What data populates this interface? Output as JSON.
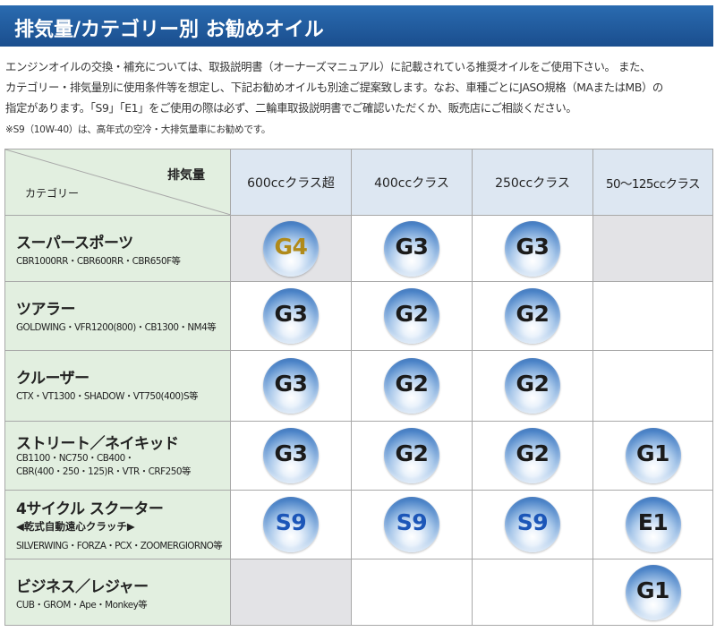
{
  "header": {
    "title": "排気量/カテゴリー別 お勧めオイル"
  },
  "intro": {
    "lines": [
      "エンジンオイルの交換・補充については、取扱説明書（オーナーズマニュアル）に記載されている推奨オイルをご使用下さい。 また、",
      "カテゴリー・排気量別に使用条件等を想定し、下記お勧めオイルも別途ご提案致します。なお、車種ごとにJASO規格（MAまたはMB）の",
      "指定があります。「S9」「E1」をご使用の際は必ず、二輪車取扱説明書でご確認いただくか、販売店にご相談ください。"
    ],
    "note": "※S9（10W-40）は、高年式の空冷・大排気量車にお勧めです。"
  },
  "table": {
    "corner_top": "排気量",
    "corner_bottom": "カテゴリー",
    "columns": [
      "600ccクラス超",
      "400ccクラス",
      "250ccクラス",
      "50～125ccクラス"
    ],
    "rows": [
      {
        "name": "スーパースポーツ",
        "models": [
          "CBR1000RR・CBR600RR・CBR650F等"
        ],
        "values": [
          "G4",
          "G3",
          "G3",
          ""
        ]
      },
      {
        "name": "ツアラー",
        "models": [
          "GOLDWING・VFR1200(800)・CB1300・NM4等"
        ],
        "values": [
          "G3",
          "G2",
          "G2",
          ""
        ]
      },
      {
        "name": "クルーザー",
        "models": [
          "CTX・VT1300・SHADOW・VT750(400)S等"
        ],
        "values": [
          "G3",
          "G2",
          "G2",
          ""
        ]
      },
      {
        "name": "ストリート／ネイキッド",
        "models": [
          "CB1100・NC750・CB400・",
          "CBR(400・250・125)R・VTR・CRF250等"
        ],
        "values": [
          "G3",
          "G2",
          "G2",
          "G1"
        ]
      },
      {
        "name": "4サイクル スクーター",
        "note": "◀乾式自動遠心クラッチ▶",
        "models": [
          "SILVERWING・FORZA・PCX・ZOOMERGIORNO等"
        ],
        "values": [
          "S9",
          "S9",
          "S9",
          "E1"
        ]
      },
      {
        "name": "ビジネス／レジャー",
        "models": [
          "CUB・GROM・Ape・Monkey等"
        ],
        "values": [
          "",
          "",
          "",
          "G1"
        ]
      }
    ]
  },
  "colors": {
    "title_bar": "#1f5ca0",
    "category_bg": "#e2efe0",
    "header_bg": "#dde7f2",
    "shaded_cell": "#e3e3e6",
    "badge_blue": "#4c84c8",
    "g4_text": "#b08a1a",
    "s_text": "#1c56b8"
  }
}
